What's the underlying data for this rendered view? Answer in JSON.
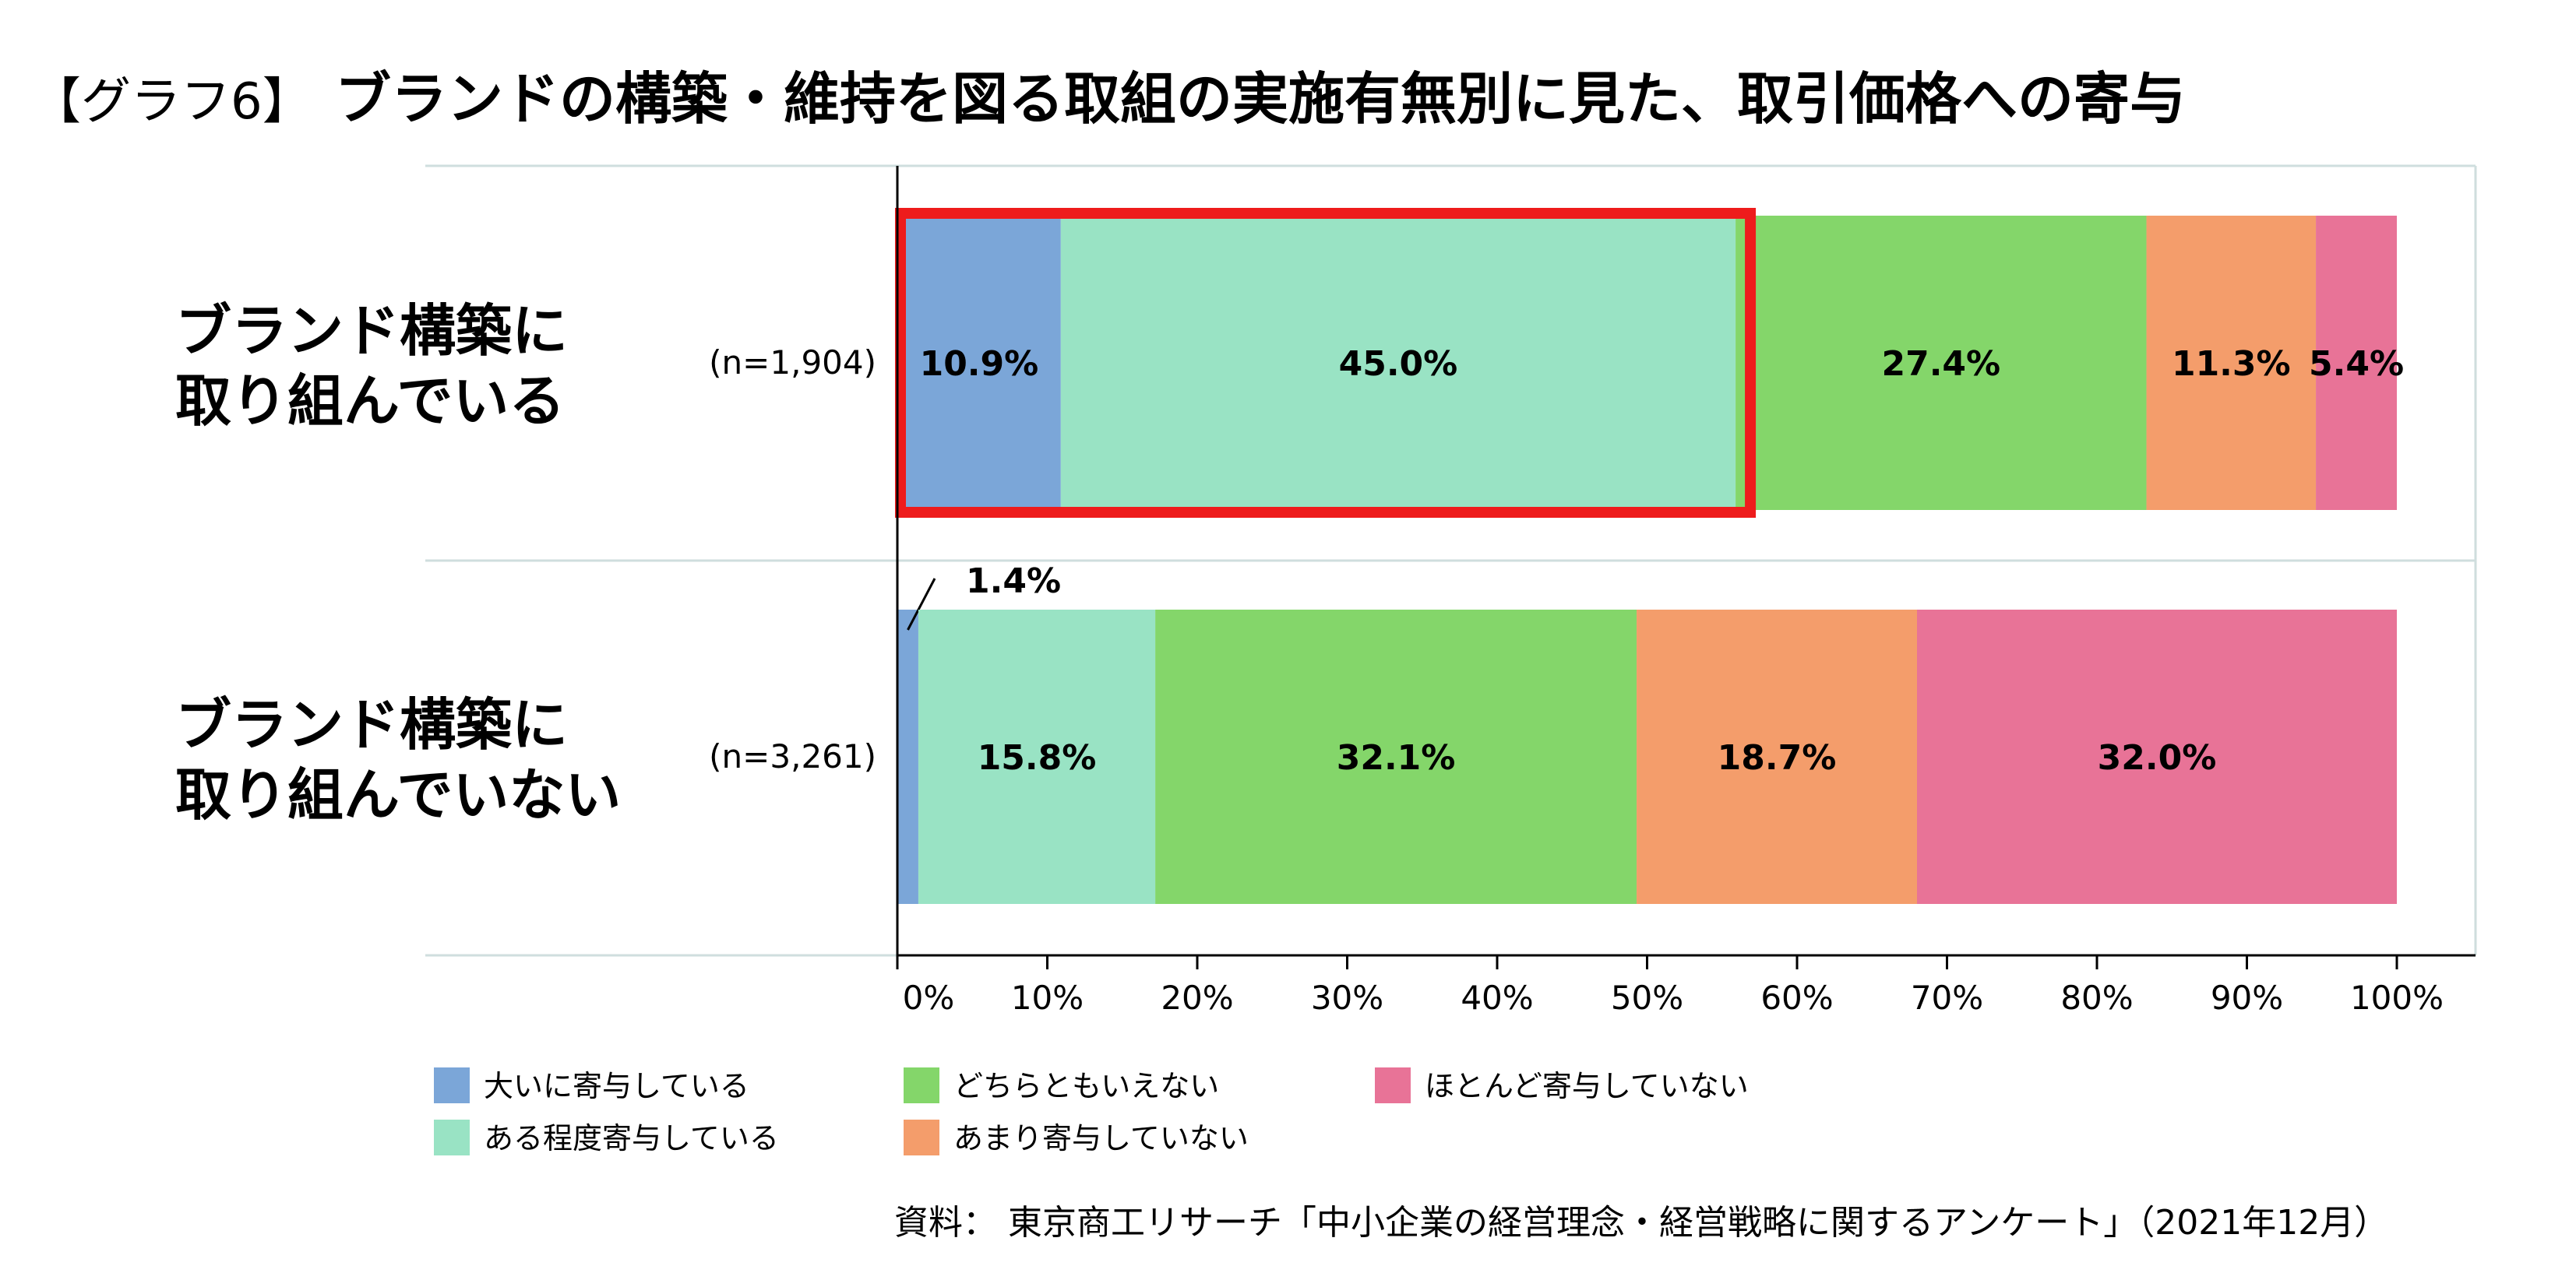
{
  "title": {
    "prefix": "【グラフ6】",
    "main": "ブランドの構築・維持を図る取組の実施有無別に見た、取引価格への寄与"
  },
  "chart_data": {
    "type": "bar",
    "orientation": "horizontal",
    "stacked": true,
    "categories": [
      {
        "lines": [
          "ブランド構築に",
          "取り組んでいる"
        ],
        "n": "(n=1,904)"
      },
      {
        "lines": [
          "ブランド構築に",
          "取り組んでいない"
        ],
        "n": "(n=3,261)"
      }
    ],
    "series": [
      {
        "name": "大いに寄与している",
        "color": "#7ba6d8",
        "values": [
          10.9,
          1.4
        ]
      },
      {
        "name": "ある程度寄与している",
        "color": "#99e3c4",
        "values": [
          45.0,
          15.8
        ]
      },
      {
        "name": "どちらともいえない",
        "color": "#84d66a",
        "values": [
          27.4,
          32.1
        ]
      },
      {
        "name": "あまり寄与していない",
        "color": "#f49d6b",
        "values": [
          11.3,
          18.7
        ]
      },
      {
        "name": "ほとんど寄与していない",
        "color": "#e87397",
        "values": [
          5.4,
          32.0
        ]
      }
    ],
    "data_labels": [
      [
        "10.9%",
        "45.0%",
        "27.4%",
        "11.3%",
        "5.4%"
      ],
      [
        "1.4%",
        "15.8%",
        "32.1%",
        "18.7%",
        "32.0%"
      ]
    ],
    "xlim": [
      0,
      100
    ],
    "x_ticks": [
      "0%",
      "10%",
      "20%",
      "30%",
      "40%",
      "50%",
      "60%",
      "70%",
      "80%",
      "90%",
      "100%"
    ],
    "highlight": {
      "category_index": 0,
      "series": [
        0,
        1
      ],
      "color": "#ee1c1c"
    },
    "legend_position": "bottom",
    "grid": false
  },
  "source": "資料： 東京商工リサーチ「中小企業の経営理念・経営戦略に関するアンケート」（2021年12月）"
}
